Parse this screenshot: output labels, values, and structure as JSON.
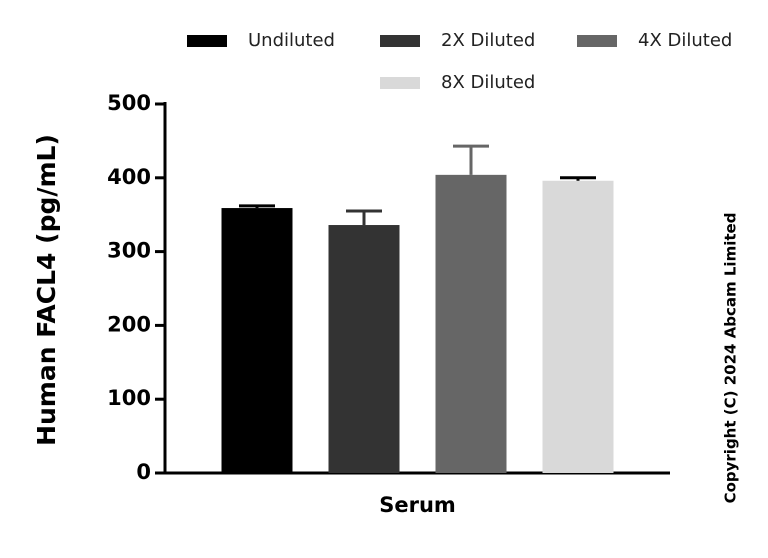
{
  "chart_data": {
    "type": "bar",
    "ylabel": "Human FACL4 (pg/mL)",
    "categories": [
      "Serum"
    ],
    "series": [
      {
        "name": "Undiluted",
        "color": "#000000",
        "values": [
          359
        ],
        "errors": [
          3
        ]
      },
      {
        "name": "2X Diluted",
        "color": "#333333",
        "values": [
          336
        ],
        "errors": [
          19
        ]
      },
      {
        "name": "4X Diluted",
        "color": "#666666",
        "values": [
          404
        ],
        "errors": [
          39
        ]
      },
      {
        "name": "8X Diluted",
        "color": "#d9d9d9",
        "values": [
          396
        ],
        "errors": [
          4
        ]
      }
    ],
    "ylim": [
      0,
      500
    ],
    "yticks": [
      0,
      100,
      200,
      300,
      400,
      500
    ],
    "annotation": "Copyright (C) 2024 Abcam Limited"
  }
}
